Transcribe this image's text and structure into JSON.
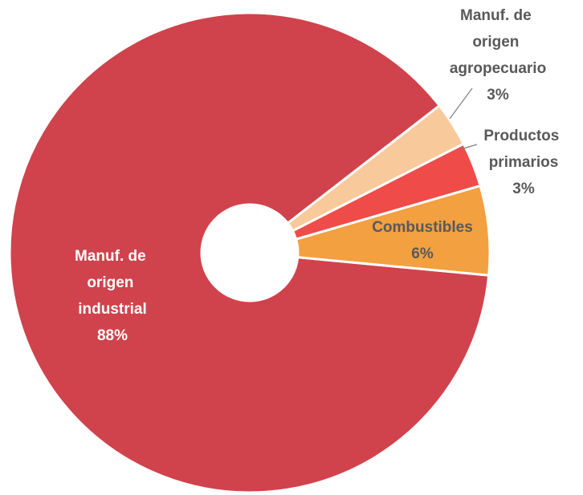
{
  "chart_data": {
    "type": "donut",
    "categories": [
      "Manuf. de origen industrial",
      "Manuf. de origen agropecuario",
      "Productos primarios",
      "Combustibles"
    ],
    "values": [
      88,
      3,
      3,
      6
    ],
    "value_labels": [
      "88%",
      "3%",
      "3%",
      "6%"
    ],
    "colors": [
      "#d0434c",
      "#f8c99a",
      "#ef4b48",
      "#f2a040"
    ]
  }
}
